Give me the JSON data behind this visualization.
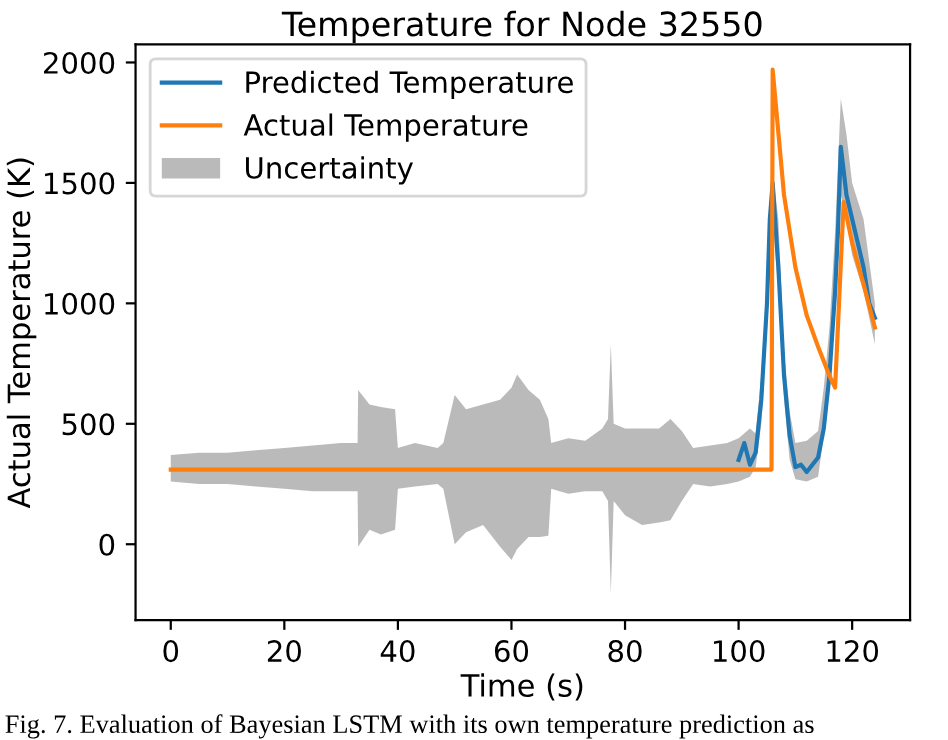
{
  "chart_data": {
    "type": "line",
    "title": "Temperature for Node 32550",
    "xlabel": "Time (s)",
    "ylabel": "Actual Temperature (K)",
    "xlim": [
      -6.2,
      130.2
    ],
    "xticks": [
      0,
      20,
      40,
      60,
      80,
      100,
      120
    ],
    "ylim": [
      -315,
      2075
    ],
    "yticks": [
      0,
      500,
      1000,
      1500,
      2000
    ],
    "grid": false,
    "legend": "top left",
    "series": [
      {
        "name": "Predicted Temperature",
        "color": "#1f77b4",
        "x": [
          100,
          101,
          102,
          103,
          104,
          105,
          105.5,
          106,
          107,
          108,
          109,
          110,
          111,
          112,
          113,
          114,
          115,
          116,
          117,
          117.5,
          118,
          118.5,
          119,
          120,
          121,
          122,
          123,
          124
        ],
        "values": [
          350,
          420,
          330,
          380,
          600,
          1000,
          1350,
          1500,
          1150,
          700,
          450,
          320,
          330,
          300,
          330,
          360,
          480,
          700,
          1050,
          1300,
          1650,
          1550,
          1450,
          1350,
          1250,
          1150,
          1000,
          940
        ]
      },
      {
        "name": "Actual Temperature",
        "color": "#ff7f0e",
        "x": [
          0,
          105.8,
          106,
          108,
          110,
          112,
          114,
          116,
          117,
          118.5,
          120,
          122,
          124
        ],
        "values": [
          310,
          310,
          1970,
          1450,
          1150,
          950,
          820,
          700,
          650,
          1420,
          1250,
          1080,
          900
        ]
      },
      {
        "name": "Uncertainty",
        "color": "#a9a9a9",
        "values": [
          null,
          null,
          null,
          null,
          null,
          null,
          null,
          null,
          null,
          null,
          null,
          null,
          null,
          null,
          null,
          null,
          null,
          null,
          null,
          null,
          null,
          null,
          null,
          null,
          null,
          null,
          null,
          null,
          null,
          null,
          null,
          null,
          null,
          null,
          null,
          null,
          null,
          null,
          null,
          null,
          null,
          null,
          null,
          null,
          null,
          null,
          null,
          null,
          null,
          null,
          null,
          null,
          null,
          null,
          null,
          null,
          null,
          null,
          null,
          null
        ],
        "x": [
          0,
          5,
          10,
          15,
          20,
          25,
          30,
          32.9,
          33,
          35,
          37,
          39.5,
          40,
          43,
          47,
          48,
          50,
          52,
          55,
          58,
          60,
          61,
          63,
          65,
          66.5,
          67,
          70,
          73,
          76,
          77,
          77.5,
          78,
          80,
          83,
          86,
          88,
          90,
          92,
          95,
          98,
          100,
          102,
          103,
          104,
          105,
          106,
          107,
          108,
          109,
          110,
          112,
          114,
          115,
          116,
          117,
          118,
          119,
          120,
          122,
          124
        ],
        "upper": [
          370,
          380,
          380,
          390,
          400,
          410,
          420,
          420,
          640,
          580,
          570,
          560,
          400,
          420,
          400,
          420,
          620,
          560,
          580,
          600,
          650,
          705,
          640,
          600,
          520,
          420,
          440,
          430,
          480,
          520,
          830,
          500,
          480,
          480,
          480,
          520,
          470,
          400,
          410,
          420,
          440,
          480,
          460,
          700,
          1100,
          1550,
          1350,
          800,
          550,
          420,
          430,
          470,
          650,
          900,
          1300,
          1850,
          1700,
          1500,
          1350,
          1000
        ],
        "lower": [
          260,
          250,
          250,
          240,
          230,
          220,
          220,
          220,
          -10,
          60,
          40,
          60,
          230,
          240,
          250,
          230,
          0,
          50,
          80,
          -10,
          -65,
          -20,
          30,
          30,
          35,
          230,
          210,
          220,
          220,
          180,
          -205,
          180,
          120,
          80,
          90,
          100,
          180,
          250,
          240,
          250,
          260,
          280,
          320,
          500,
          900,
          1350,
          1050,
          600,
          350,
          270,
          260,
          280,
          450,
          700,
          1100,
          1450,
          1350,
          1200,
          1050,
          830
        ]
      }
    ],
    "annotations": [
      "Fig. 7. Evaluation of Bayesian LSTM with its own temperature prediction as"
    ]
  }
}
